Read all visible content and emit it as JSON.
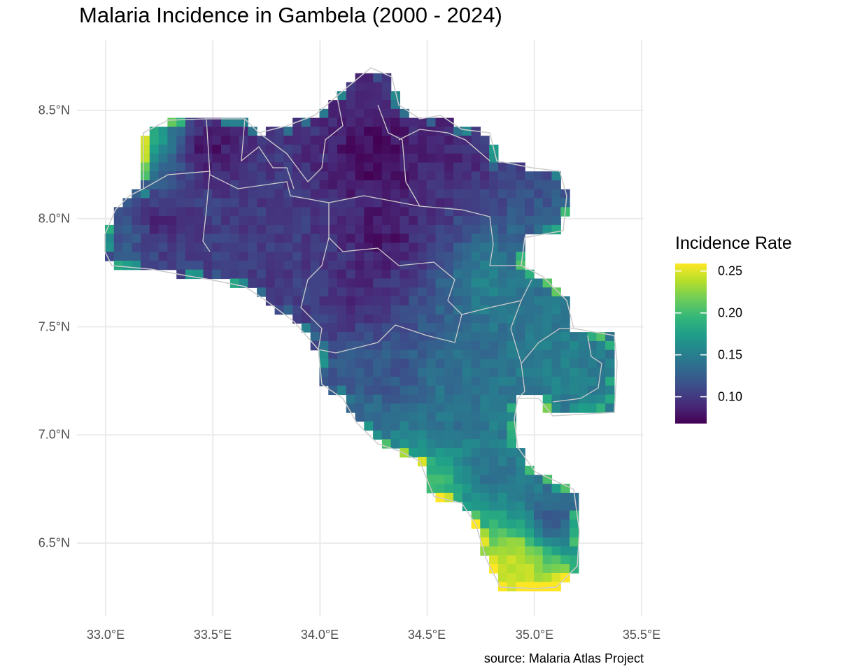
{
  "chart_data": {
    "type": "heatmap",
    "title": "Malaria Incidence in Gambela (2000 - 2024)",
    "caption": "source: Malaria Atlas Project",
    "xlabel": "",
    "ylabel": "",
    "xlim": [
      33.0,
      35.5
    ],
    "ylim": [
      6.5,
      8.5
    ],
    "x_ticks": [
      "33.0°E",
      "33.5°E",
      "34.0°E",
      "34.5°E",
      "35.0°E",
      "35.5°E"
    ],
    "y_ticks": [
      "8.5°N",
      "8.0°N",
      "7.5°N",
      "7.0°N",
      "6.5°N"
    ],
    "grid": true,
    "legend": {
      "title": "Incidence Rate",
      "placement": "right",
      "colormap": "viridis",
      "range": [
        0.068,
        0.259
      ],
      "ticks": [
        "0.25",
        "0.20",
        "0.15",
        "0.10"
      ]
    },
    "boundary_color": "#cccccc",
    "approx_values": [
      {
        "lon": 33.49,
        "lat": 8.33,
        "value": 0.08
      },
      {
        "lon": 34.27,
        "lat": 8.27,
        "value": 0.07
      },
      {
        "lon": 34.63,
        "lat": 8.3,
        "value": 0.09
      },
      {
        "lon": 33.26,
        "lat": 7.98,
        "value": 0.09
      },
      {
        "lon": 33.81,
        "lat": 7.88,
        "value": 0.1
      },
      {
        "lon": 34.3,
        "lat": 7.91,
        "value": 0.08
      },
      {
        "lon": 34.2,
        "lat": 7.65,
        "value": 0.09
      },
      {
        "lon": 34.79,
        "lat": 7.69,
        "value": 0.15
      },
      {
        "lon": 35.18,
        "lat": 7.33,
        "value": 0.15
      },
      {
        "lon": 34.33,
        "lat": 7.3,
        "value": 0.12
      },
      {
        "lon": 34.63,
        "lat": 7.07,
        "value": 0.14
      },
      {
        "lon": 34.79,
        "lat": 6.81,
        "value": 0.14
      },
      {
        "lon": 35.08,
        "lat": 6.62,
        "value": 0.12
      },
      {
        "lon": 34.89,
        "lat": 6.43,
        "value": 0.24
      },
      {
        "lon": 34.95,
        "lat": 6.33,
        "value": 0.25
      },
      {
        "lon": 34.53,
        "lat": 6.78,
        "value": 0.2
      },
      {
        "lon": 33.09,
        "lat": 7.91,
        "value": 0.12
      },
      {
        "lon": 33.19,
        "lat": 8.36,
        "value": 0.18
      }
    ]
  }
}
